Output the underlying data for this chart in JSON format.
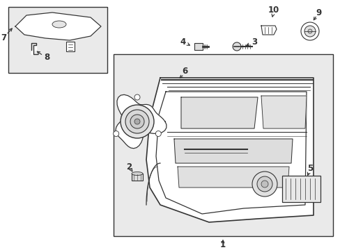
{
  "bg_color": "#ffffff",
  "fig_width": 4.89,
  "fig_height": 3.6,
  "dpi": 100,
  "light_gray": "#e8e8e8",
  "line_color": "#333333"
}
